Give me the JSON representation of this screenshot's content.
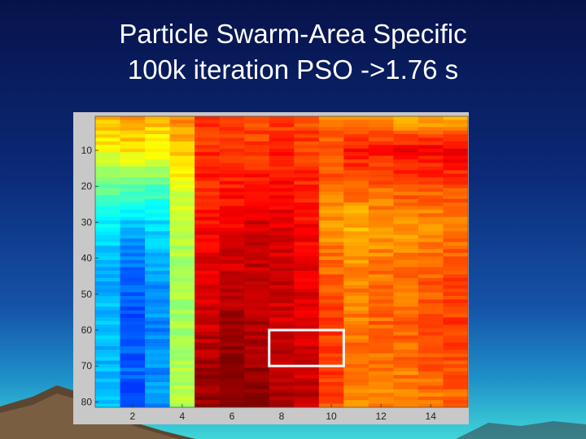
{
  "slide": {
    "title_line1": "Particle Swarm-Area Specific",
    "title_line2": "100k iteration PSO ->1.76 s"
  },
  "chart_data": {
    "type": "heatmap",
    "title": "",
    "xlabel": "",
    "ylabel": "",
    "x_range": [
      0.5,
      15.5
    ],
    "y_range": [
      0.5,
      81.5
    ],
    "y_reversed": true,
    "colormap": "jet",
    "x_ticks": [
      2,
      4,
      6,
      8,
      10,
      12,
      14
    ],
    "y_ticks": [
      10,
      20,
      30,
      40,
      50,
      60,
      70,
      80
    ],
    "columns": [
      {
        "x": 1,
        "profile": [
          [
            1,
            0.7
          ],
          [
            10,
            0.62
          ],
          [
            20,
            0.48
          ],
          [
            30,
            0.36
          ],
          [
            45,
            0.3
          ],
          [
            60,
            0.32
          ],
          [
            70,
            0.3
          ],
          [
            80,
            0.32
          ]
        ]
      },
      {
        "x": 2,
        "profile": [
          [
            1,
            0.74
          ],
          [
            10,
            0.64
          ],
          [
            20,
            0.46
          ],
          [
            30,
            0.33
          ],
          [
            40,
            0.24
          ],
          [
            55,
            0.2
          ],
          [
            70,
            0.22
          ],
          [
            80,
            0.2
          ]
        ]
      },
      {
        "x": 3,
        "profile": [
          [
            1,
            0.7
          ],
          [
            10,
            0.62
          ],
          [
            20,
            0.46
          ],
          [
            30,
            0.34
          ],
          [
            45,
            0.28
          ],
          [
            60,
            0.26
          ],
          [
            80,
            0.27
          ]
        ]
      },
      {
        "x": 4,
        "profile": [
          [
            1,
            0.74
          ],
          [
            10,
            0.68
          ],
          [
            20,
            0.6
          ],
          [
            30,
            0.56
          ],
          [
            45,
            0.54
          ],
          [
            60,
            0.54
          ],
          [
            80,
            0.55
          ]
        ]
      },
      {
        "x": 5,
        "profile": [
          [
            1,
            0.82
          ],
          [
            10,
            0.83
          ],
          [
            20,
            0.84
          ],
          [
            30,
            0.87
          ],
          [
            45,
            0.9
          ],
          [
            60,
            0.93
          ],
          [
            70,
            0.96
          ],
          [
            80,
            0.98
          ]
        ]
      },
      {
        "x": 6,
        "profile": [
          [
            1,
            0.8
          ],
          [
            10,
            0.82
          ],
          [
            20,
            0.85
          ],
          [
            30,
            0.89
          ],
          [
            45,
            0.93
          ],
          [
            60,
            0.97
          ],
          [
            70,
            1.0
          ],
          [
            80,
            1.0
          ]
        ]
      },
      {
        "x": 7,
        "profile": [
          [
            1,
            0.8
          ],
          [
            10,
            0.82
          ],
          [
            20,
            0.87
          ],
          [
            30,
            0.91
          ],
          [
            45,
            0.93
          ],
          [
            60,
            0.95
          ],
          [
            70,
            0.98
          ],
          [
            80,
            1.0
          ]
        ]
      },
      {
        "x": 8,
        "profile": [
          [
            1,
            0.82
          ],
          [
            10,
            0.84
          ],
          [
            20,
            0.87
          ],
          [
            30,
            0.9
          ],
          [
            45,
            0.92
          ],
          [
            60,
            0.92
          ],
          [
            70,
            0.94
          ],
          [
            80,
            0.96
          ]
        ]
      },
      {
        "x": 9,
        "profile": [
          [
            1,
            0.8
          ],
          [
            10,
            0.82
          ],
          [
            20,
            0.84
          ],
          [
            30,
            0.87
          ],
          [
            45,
            0.9
          ],
          [
            60,
            0.9
          ],
          [
            70,
            0.92
          ],
          [
            80,
            0.94
          ]
        ]
      },
      {
        "x": 10,
        "profile": [
          [
            1,
            0.76
          ],
          [
            10,
            0.8
          ],
          [
            20,
            0.78
          ],
          [
            30,
            0.72
          ],
          [
            45,
            0.78
          ],
          [
            60,
            0.82
          ],
          [
            70,
            0.82
          ],
          [
            80,
            0.8
          ]
        ]
      },
      {
        "x": 11,
        "profile": [
          [
            1,
            0.72
          ],
          [
            10,
            0.86
          ],
          [
            20,
            0.78
          ],
          [
            30,
            0.7
          ],
          [
            45,
            0.74
          ],
          [
            60,
            0.76
          ],
          [
            70,
            0.76
          ],
          [
            80,
            0.74
          ]
        ]
      },
      {
        "x": 12,
        "profile": [
          [
            1,
            0.72
          ],
          [
            10,
            0.86
          ],
          [
            20,
            0.78
          ],
          [
            30,
            0.72
          ],
          [
            45,
            0.76
          ],
          [
            60,
            0.78
          ],
          [
            70,
            0.76
          ],
          [
            80,
            0.74
          ]
        ]
      },
      {
        "x": 13,
        "profile": [
          [
            1,
            0.7
          ],
          [
            10,
            0.88
          ],
          [
            20,
            0.8
          ],
          [
            30,
            0.72
          ],
          [
            45,
            0.76
          ],
          [
            60,
            0.78
          ],
          [
            70,
            0.76
          ],
          [
            80,
            0.74
          ]
        ]
      },
      {
        "x": 14,
        "profile": [
          [
            1,
            0.7
          ],
          [
            10,
            0.88
          ],
          [
            20,
            0.8
          ],
          [
            30,
            0.74
          ],
          [
            45,
            0.78
          ],
          [
            60,
            0.8
          ],
          [
            70,
            0.78
          ],
          [
            80,
            0.76
          ]
        ]
      },
      {
        "x": 15,
        "profile": [
          [
            1,
            0.7
          ],
          [
            10,
            0.88
          ],
          [
            20,
            0.8
          ],
          [
            30,
            0.76
          ],
          [
            45,
            0.8
          ],
          [
            60,
            0.82
          ],
          [
            70,
            0.8
          ],
          [
            80,
            0.78
          ]
        ]
      }
    ],
    "highlight_box": {
      "x_range": [
        7.5,
        10.5
      ],
      "y_range": [
        60,
        70
      ],
      "color": "#ffffff"
    },
    "grid": false,
    "legend": "none"
  }
}
